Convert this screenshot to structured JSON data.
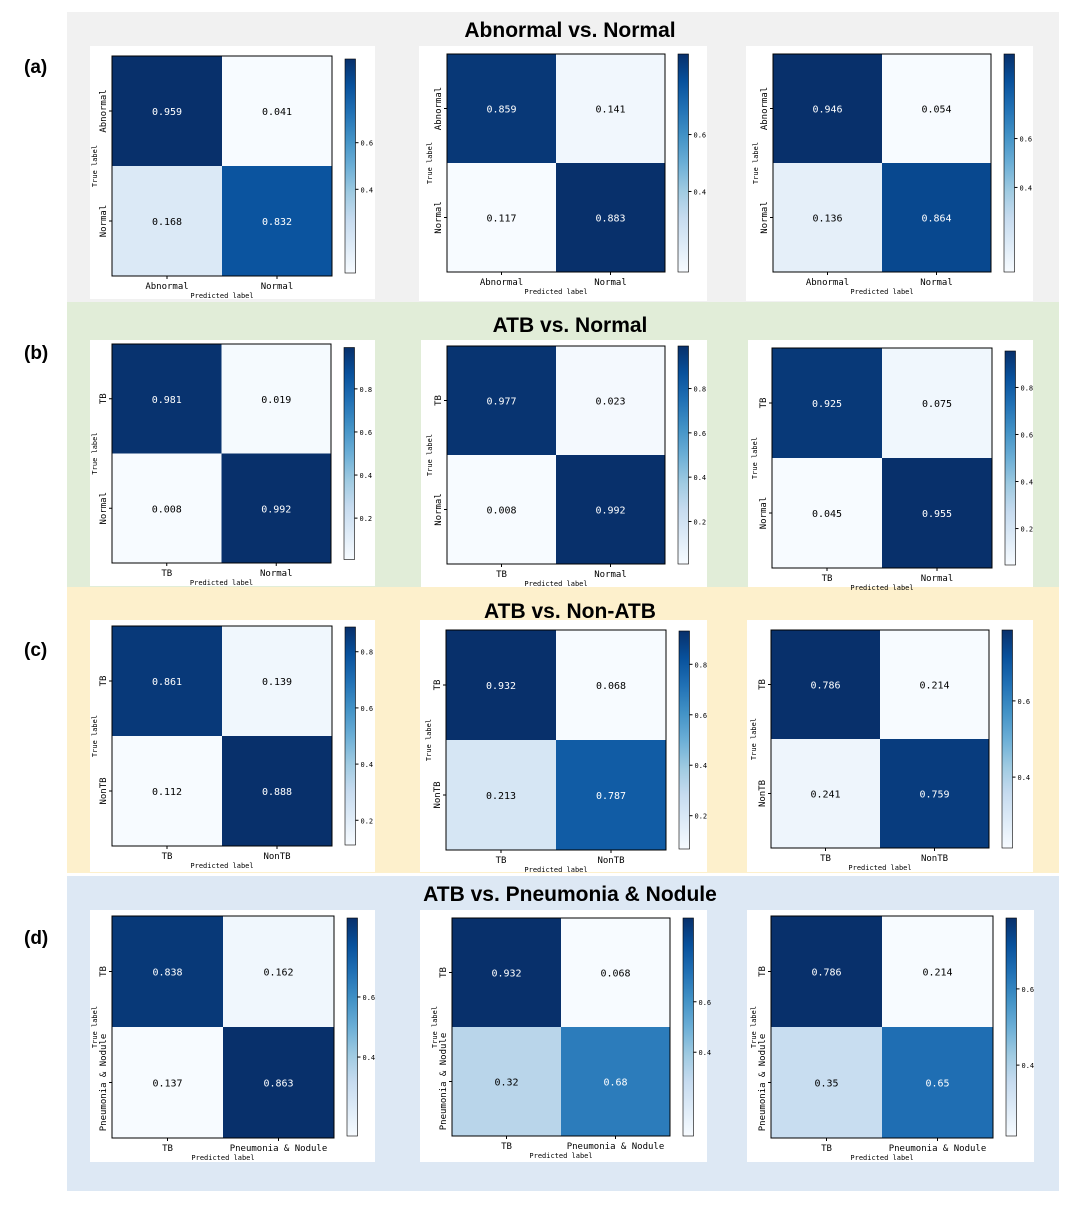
{
  "rows": [
    {
      "id": "a",
      "label": "(a)",
      "title": "Abnormal vs. Normal",
      "band_color": "#f1f1f1",
      "classes": [
        "Abnormal",
        "Normal"
      ],
      "xlabel": "Predicted label",
      "ylabel": "True label",
      "charts": [
        {
          "type": "heatmap",
          "matrix": [
            [
              0.959,
              0.041
            ],
            [
              0.168,
              0.832
            ]
          ],
          "cells": [
            [
              "0.959",
              "0.041"
            ],
            [
              "0.168",
              "0.832"
            ]
          ],
          "ticks": [
            "0.6",
            "0.4"
          ],
          "tick_values": [
            0.6,
            0.4
          ],
          "vmin": 0.041,
          "vmax": 0.959
        },
        {
          "type": "heatmap",
          "matrix": [
            [
              0.859,
              0.141
            ],
            [
              0.117,
              0.883
            ]
          ],
          "cells": [
            [
              "0.859",
              "0.141"
            ],
            [
              "0.117",
              "0.883"
            ]
          ],
          "ticks": [
            "0.6",
            "0.4"
          ],
          "tick_values": [
            0.6,
            0.4
          ],
          "vmin": 0.117,
          "vmax": 0.883
        },
        {
          "type": "heatmap",
          "matrix": [
            [
              0.946,
              0.054
            ],
            [
              0.136,
              0.864
            ]
          ],
          "cells": [
            [
              "0.946",
              "0.054"
            ],
            [
              "0.136",
              "0.864"
            ]
          ],
          "ticks": [
            "0.6",
            "0.4"
          ],
          "tick_values": [
            0.6,
            0.4
          ],
          "vmin": 0.054,
          "vmax": 0.946
        }
      ]
    },
    {
      "id": "b",
      "label": "(b)",
      "title": "ATB vs. Normal",
      "band_color": "#e1edd8",
      "classes": [
        "TB",
        "Normal"
      ],
      "xlabel": "Predicted label",
      "ylabel": "True label",
      "charts": [
        {
          "type": "heatmap",
          "matrix": [
            [
              0.981,
              0.019
            ],
            [
              0.008,
              0.992
            ]
          ],
          "cells": [
            [
              "0.981",
              "0.019"
            ],
            [
              "0.008",
              "0.992"
            ]
          ],
          "ticks": [
            "0.8",
            "0.6",
            "0.4",
            "0.2"
          ],
          "tick_values": [
            0.8,
            0.6,
            0.4,
            0.2
          ],
          "vmin": 0.008,
          "vmax": 0.992
        },
        {
          "type": "heatmap",
          "matrix": [
            [
              0.977,
              0.023
            ],
            [
              0.008,
              0.992
            ]
          ],
          "cells": [
            [
              "0.977",
              "0.023"
            ],
            [
              "0.008",
              "0.992"
            ]
          ],
          "ticks": [
            "0.8",
            "0.6",
            "0.4",
            "0.2"
          ],
          "tick_values": [
            0.8,
            0.6,
            0.4,
            0.2
          ],
          "vmin": 0.008,
          "vmax": 0.992
        },
        {
          "type": "heatmap",
          "matrix": [
            [
              0.925,
              0.075
            ],
            [
              0.045,
              0.955
            ]
          ],
          "cells": [
            [
              "0.925",
              "0.075"
            ],
            [
              "0.045",
              "0.955"
            ]
          ],
          "ticks": [
            "0.8",
            "0.6",
            "0.4",
            "0.2"
          ],
          "tick_values": [
            0.8,
            0.6,
            0.4,
            0.2
          ],
          "vmin": 0.045,
          "vmax": 0.955
        }
      ]
    },
    {
      "id": "c",
      "label": "(c)",
      "title": "ATB vs. Non-ATB",
      "band_color": "#fdf0cc",
      "classes": [
        "TB",
        "NonTB"
      ],
      "xlabel": "Predicted label",
      "ylabel": "True label",
      "charts": [
        {
          "type": "heatmap",
          "matrix": [
            [
              0.861,
              0.139
            ],
            [
              0.112,
              0.888
            ]
          ],
          "cells": [
            [
              "0.861",
              "0.139"
            ],
            [
              "0.112",
              "0.888"
            ]
          ],
          "ticks": [
            "0.8",
            "0.6",
            "0.4",
            "0.2"
          ],
          "tick_values": [
            0.8,
            0.6,
            0.4,
            0.2
          ],
          "vmin": 0.112,
          "vmax": 0.888
        },
        {
          "type": "heatmap",
          "matrix": [
            [
              0.932,
              0.068
            ],
            [
              0.213,
              0.787
            ]
          ],
          "cells": [
            [
              "0.932",
              "0.068"
            ],
            [
              "0.213",
              "0.787"
            ]
          ],
          "ticks": [
            "0.8",
            "0.6",
            "0.4",
            "0.2"
          ],
          "tick_values": [
            0.8,
            0.6,
            0.4,
            0.2
          ],
          "vmin": 0.068,
          "vmax": 0.932
        },
        {
          "type": "heatmap",
          "matrix": [
            [
              0.786,
              0.214
            ],
            [
              0.241,
              0.759
            ]
          ],
          "cells": [
            [
              "0.786",
              "0.214"
            ],
            [
              "0.241",
              "0.759"
            ]
          ],
          "ticks": [
            "0.6",
            "0.4"
          ],
          "tick_values": [
            0.6,
            0.4
          ],
          "vmin": 0.214,
          "vmax": 0.786
        }
      ]
    },
    {
      "id": "d",
      "label": "(d)",
      "title": "ATB vs. Pneumonia & Nodule",
      "band_color": "#dde8f4",
      "classes": [
        "TB",
        "Pneumonia & Nodule"
      ],
      "xlabel": "Predicted label",
      "ylabel": "True label",
      "charts": [
        {
          "type": "heatmap",
          "matrix": [
            [
              0.838,
              0.162
            ],
            [
              0.137,
              0.863
            ]
          ],
          "cells": [
            [
              "0.838",
              "0.162"
            ],
            [
              "0.137",
              "0.863"
            ]
          ],
          "ticks": [
            "0.6",
            "0.4"
          ],
          "tick_values": [
            0.6,
            0.4
          ],
          "vmin": 0.137,
          "vmax": 0.863
        },
        {
          "type": "heatmap",
          "matrix": [
            [
              0.932,
              0.068
            ],
            [
              0.32,
              0.68
            ]
          ],
          "cells": [
            [
              "0.932",
              "0.068"
            ],
            [
              "0.32",
              "0.68"
            ]
          ],
          "ticks": [
            "0.6",
            "0.4"
          ],
          "tick_values": [
            0.6,
            0.4
          ],
          "vmin": 0.068,
          "vmax": 0.932
        },
        {
          "type": "heatmap",
          "matrix": [
            [
              0.786,
              0.214
            ],
            [
              0.35,
              0.65
            ]
          ],
          "cells": [
            [
              "0.786",
              "0.214"
            ],
            [
              "0.35",
              "0.65"
            ]
          ],
          "ticks": [
            "0.6",
            "0.4"
          ],
          "tick_values": [
            0.6,
            0.4
          ],
          "vmin": 0.214,
          "vmax": 0.786
        }
      ]
    }
  ],
  "chart_data": [
    {
      "type": "heatmap",
      "title": "Abnormal vs. Normal",
      "x": [
        "Abnormal",
        "Normal"
      ],
      "y": [
        "Abnormal",
        "Normal"
      ],
      "xlabel": "Predicted label",
      "ylabel": "True label",
      "series": [
        {
          "values": [
            [
              0.959,
              0.041
            ],
            [
              0.168,
              0.832
            ]
          ]
        },
        {
          "values": [
            [
              0.859,
              0.141
            ],
            [
              0.117,
              0.883
            ]
          ]
        },
        {
          "values": [
            [
              0.946,
              0.054
            ],
            [
              0.136,
              0.864
            ]
          ]
        }
      ]
    },
    {
      "type": "heatmap",
      "title": "ATB vs. Normal",
      "x": [
        "TB",
        "Normal"
      ],
      "y": [
        "TB",
        "Normal"
      ],
      "xlabel": "Predicted label",
      "ylabel": "True label",
      "series": [
        {
          "values": [
            [
              0.981,
              0.019
            ],
            [
              0.008,
              0.992
            ]
          ]
        },
        {
          "values": [
            [
              0.977,
              0.023
            ],
            [
              0.008,
              0.992
            ]
          ]
        },
        {
          "values": [
            [
              0.925,
              0.075
            ],
            [
              0.045,
              0.955
            ]
          ]
        }
      ]
    },
    {
      "type": "heatmap",
      "title": "ATB vs. Non-ATB",
      "x": [
        "TB",
        "NonTB"
      ],
      "y": [
        "TB",
        "NonTB"
      ],
      "xlabel": "Predicted label",
      "ylabel": "True label",
      "series": [
        {
          "values": [
            [
              0.861,
              0.139
            ],
            [
              0.112,
              0.888
            ]
          ]
        },
        {
          "values": [
            [
              0.932,
              0.068
            ],
            [
              0.213,
              0.787
            ]
          ]
        },
        {
          "values": [
            [
              0.786,
              0.214
            ],
            [
              0.241,
              0.759
            ]
          ]
        }
      ]
    },
    {
      "type": "heatmap",
      "title": "ATB vs. Pneumonia & Nodule",
      "x": [
        "TB",
        "Pneumonia & Nodule"
      ],
      "y": [
        "TB",
        "Pneumonia & Nodule"
      ],
      "xlabel": "Predicted label",
      "ylabel": "True label",
      "series": [
        {
          "values": [
            [
              0.838,
              0.162
            ],
            [
              0.137,
              0.863
            ]
          ]
        },
        {
          "values": [
            [
              0.932,
              0.068
            ],
            [
              0.32,
              0.68
            ]
          ]
        },
        {
          "values": [
            [
              0.786,
              0.214
            ],
            [
              0.35,
              0.65
            ]
          ]
        }
      ]
    }
  ]
}
